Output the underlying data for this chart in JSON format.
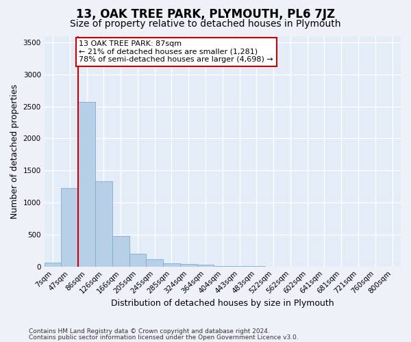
{
  "title": "13, OAK TREE PARK, PLYMOUTH, PL6 7JZ",
  "subtitle": "Size of property relative to detached houses in Plymouth",
  "xlabel": "Distribution of detached houses by size in Plymouth",
  "ylabel": "Number of detached properties",
  "bar_categories": [
    "7sqm",
    "47sqm",
    "86sqm",
    "126sqm",
    "166sqm",
    "205sqm",
    "245sqm",
    "285sqm",
    "324sqm",
    "364sqm",
    "404sqm",
    "443sqm",
    "483sqm",
    "522sqm",
    "562sqm",
    "602sqm",
    "641sqm",
    "681sqm",
    "721sqm",
    "760sqm",
    "800sqm"
  ],
  "bar_values": [
    60,
    1220,
    2570,
    1330,
    480,
    200,
    110,
    55,
    40,
    30,
    10,
    5,
    3,
    2,
    1,
    0,
    0,
    0,
    0,
    0,
    0
  ],
  "bar_color": "#b8cfe8",
  "bar_edgecolor": "#7aadd4",
  "red_line_index": 2,
  "annotation_line1": "13 OAK TREE PARK: 87sqm",
  "annotation_line2": "← 21% of detached houses are smaller (1,281)",
  "annotation_line3": "78% of semi-detached houses are larger (4,698) →",
  "annotation_box_color": "#ffffff",
  "annotation_box_edge": "#cc0000",
  "red_line_color": "#cc0000",
  "ylim": [
    0,
    3600
  ],
  "yticks": [
    0,
    500,
    1000,
    1500,
    2000,
    2500,
    3000,
    3500
  ],
  "footer1": "Contains HM Land Registry data © Crown copyright and database right 2024.",
  "footer2": "Contains public sector information licensed under the Open Government Licence v3.0.",
  "background_color": "#eef2f8",
  "plot_bg_color": "#e4ecf7",
  "grid_color": "#ffffff",
  "title_fontsize": 12,
  "subtitle_fontsize": 10,
  "ylabel_fontsize": 9,
  "xlabel_fontsize": 9,
  "tick_fontsize": 7.5,
  "annotation_fontsize": 8,
  "footer_fontsize": 6.5
}
